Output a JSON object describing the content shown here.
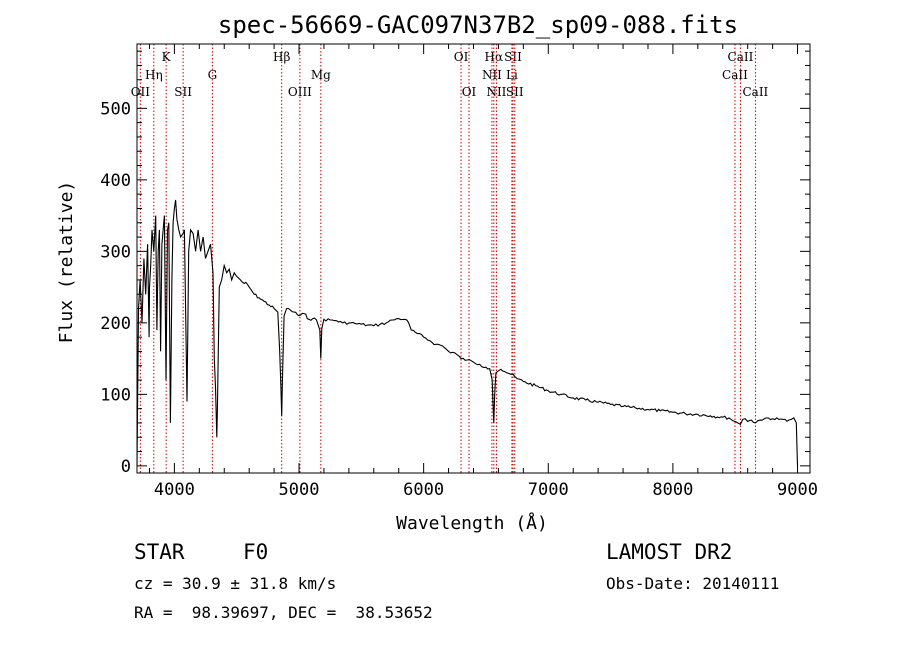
{
  "chart_data": {
    "type": "line",
    "title": "spec-56669-GAC097N37B2_sp09-088.fits",
    "xlabel": "Wavelength (Å)",
    "ylabel": "Flux (relative)",
    "xlim": [
      3700,
      9100
    ],
    "ylim": [
      -10,
      590
    ],
    "grid": false,
    "x_ticks": [
      4000,
      5000,
      6000,
      7000,
      8000,
      9000
    ],
    "x_tick_labels": [
      "4000",
      "5000",
      "6000",
      "7000",
      "8000",
      "9000"
    ],
    "y_ticks": [
      0,
      100,
      200,
      300,
      400,
      500
    ],
    "y_tick_labels": [
      "0",
      "100",
      "200",
      "300",
      "400",
      "500"
    ],
    "line_color": "#000000",
    "marker_color": "#cc0000",
    "series": [
      {
        "x": [
          3700,
          3712,
          3725,
          3740,
          3755,
          3770,
          3785,
          3797,
          3800,
          3810,
          3820,
          3835,
          3850,
          3860,
          3870,
          3880,
          3889,
          3900,
          3920,
          3933,
          3945,
          3955,
          3968,
          3980,
          3990,
          4000,
          4010,
          4020,
          4035,
          4050,
          4070,
          4080,
          4101,
          4115,
          4130,
          4150,
          4170,
          4190,
          4210,
          4230,
          4250,
          4270,
          4290,
          4310,
          4320,
          4330,
          4340,
          4345,
          4360,
          4380,
          4400,
          4420,
          4440,
          4460,
          4480,
          4500,
          4530,
          4560,
          4600,
          4640,
          4680,
          4720,
          4760,
          4800,
          4830,
          4845,
          4855,
          4861,
          4868,
          4880,
          4900,
          4930,
          4960,
          5000,
          5040,
          5080,
          5110,
          5140,
          5167,
          5175,
          5183,
          5200,
          5250,
          5300,
          5350,
          5400,
          5450,
          5500,
          5550,
          5600,
          5650,
          5700,
          5750,
          5800,
          5850,
          5880,
          5900,
          5950,
          6000,
          6050,
          6100,
          6150,
          6200,
          6250,
          6300,
          6350,
          6400,
          6450,
          6500,
          6530,
          6550,
          6556,
          6563,
          6570,
          6580,
          6600,
          6620,
          6650,
          6700,
          6750,
          6800,
          6900,
          7000,
          7100,
          7200,
          7300,
          7400,
          7500,
          7600,
          7700,
          7800,
          7900,
          8000,
          8100,
          8200,
          8300,
          8400,
          8450,
          8498,
          8520,
          8542,
          8560,
          8580,
          8600,
          8630,
          8662,
          8680,
          8700,
          8750,
          8800,
          8850,
          8900,
          8930,
          8950,
          8970,
          8990,
          9000
        ],
        "y": [
          0,
          220,
          260,
          200,
          290,
          240,
          310,
          180,
          250,
          280,
          330,
          300,
          350,
          190,
          300,
          330,
          160,
          310,
          350,
          120,
          330,
          340,
          60,
          260,
          340,
          360,
          372,
          345,
          330,
          320,
          325,
          330,
          90,
          300,
          330,
          325,
          300,
          330,
          300,
          320,
          290,
          300,
          310,
          270,
          150,
          110,
          40,
          80,
          250,
          260,
          280,
          270,
          275,
          260,
          270,
          265,
          260,
          255,
          250,
          240,
          235,
          230,
          225,
          220,
          215,
          160,
          110,
          70,
          130,
          210,
          220,
          218,
          215,
          210,
          213,
          205,
          206,
          204,
          190,
          150,
          192,
          205,
          204,
          203,
          200,
          200,
          199,
          198,
          197,
          196,
          198,
          200,
          204,
          206,
          205,
          200,
          190,
          185,
          180,
          175,
          170,
          168,
          160,
          158,
          150,
          148,
          145,
          142,
          138,
          136,
          120,
          90,
          60,
          100,
          130,
          133,
          135,
          132,
          128,
          122,
          118,
          112,
          105,
          100,
          95,
          92,
          89,
          86,
          83,
          81,
          79,
          77,
          75,
          73,
          72,
          70,
          68,
          67,
          62,
          60,
          58,
          65,
          66,
          62,
          64,
          60,
          63,
          64,
          67,
          66,
          65,
          65,
          64,
          65,
          67,
          60,
          0
        ]
      }
    ],
    "line_markers": [
      {
        "label": "OII",
        "x": 3727,
        "row": 3
      },
      {
        "label": "Hη",
        "x": 3835,
        "row": 2
      },
      {
        "label": "K",
        "x": 3934,
        "row": 1
      },
      {
        "label": "SII",
        "x": 4070,
        "row": 3
      },
      {
        "label": "G",
        "x": 4305,
        "row": 2
      },
      {
        "label": "Hβ",
        "x": 4861,
        "row": 1
      },
      {
        "label": "OIII",
        "x": 5007,
        "row": 3
      },
      {
        "label": "Mg",
        "x": 5175,
        "row": 2
      },
      {
        "label": "OI",
        "x": 6300,
        "row": 1
      },
      {
        "label": "OI",
        "x": 6364,
        "row": 3
      },
      {
        "label": "Hα",
        "x": 6563,
        "row": 1
      },
      {
        "label": "NII",
        "x": 6548,
        "row": 2
      },
      {
        "label": "NII",
        "x": 6584,
        "row": 3
      },
      {
        "label": "SII",
        "x": 6717,
        "row": 1
      },
      {
        "label": "Li",
        "x": 6708,
        "row": 2
      },
      {
        "label": "SII",
        "x": 6731,
        "row": 3
      },
      {
        "label": "CaII",
        "x": 8542,
        "row": 1
      },
      {
        "label": "CaII",
        "x": 8498,
        "row": 2
      },
      {
        "label": "CaII",
        "x": 8662,
        "row": 3
      }
    ]
  },
  "info": {
    "object_class": "STAR",
    "subclass": "F0",
    "survey": "LAMOST DR2",
    "cz": "cz = 30.9 ± 31.8 km/s",
    "obs_date": "Obs-Date: 20140111",
    "coords": "RA =  98.39697, DEC =  38.53652"
  }
}
